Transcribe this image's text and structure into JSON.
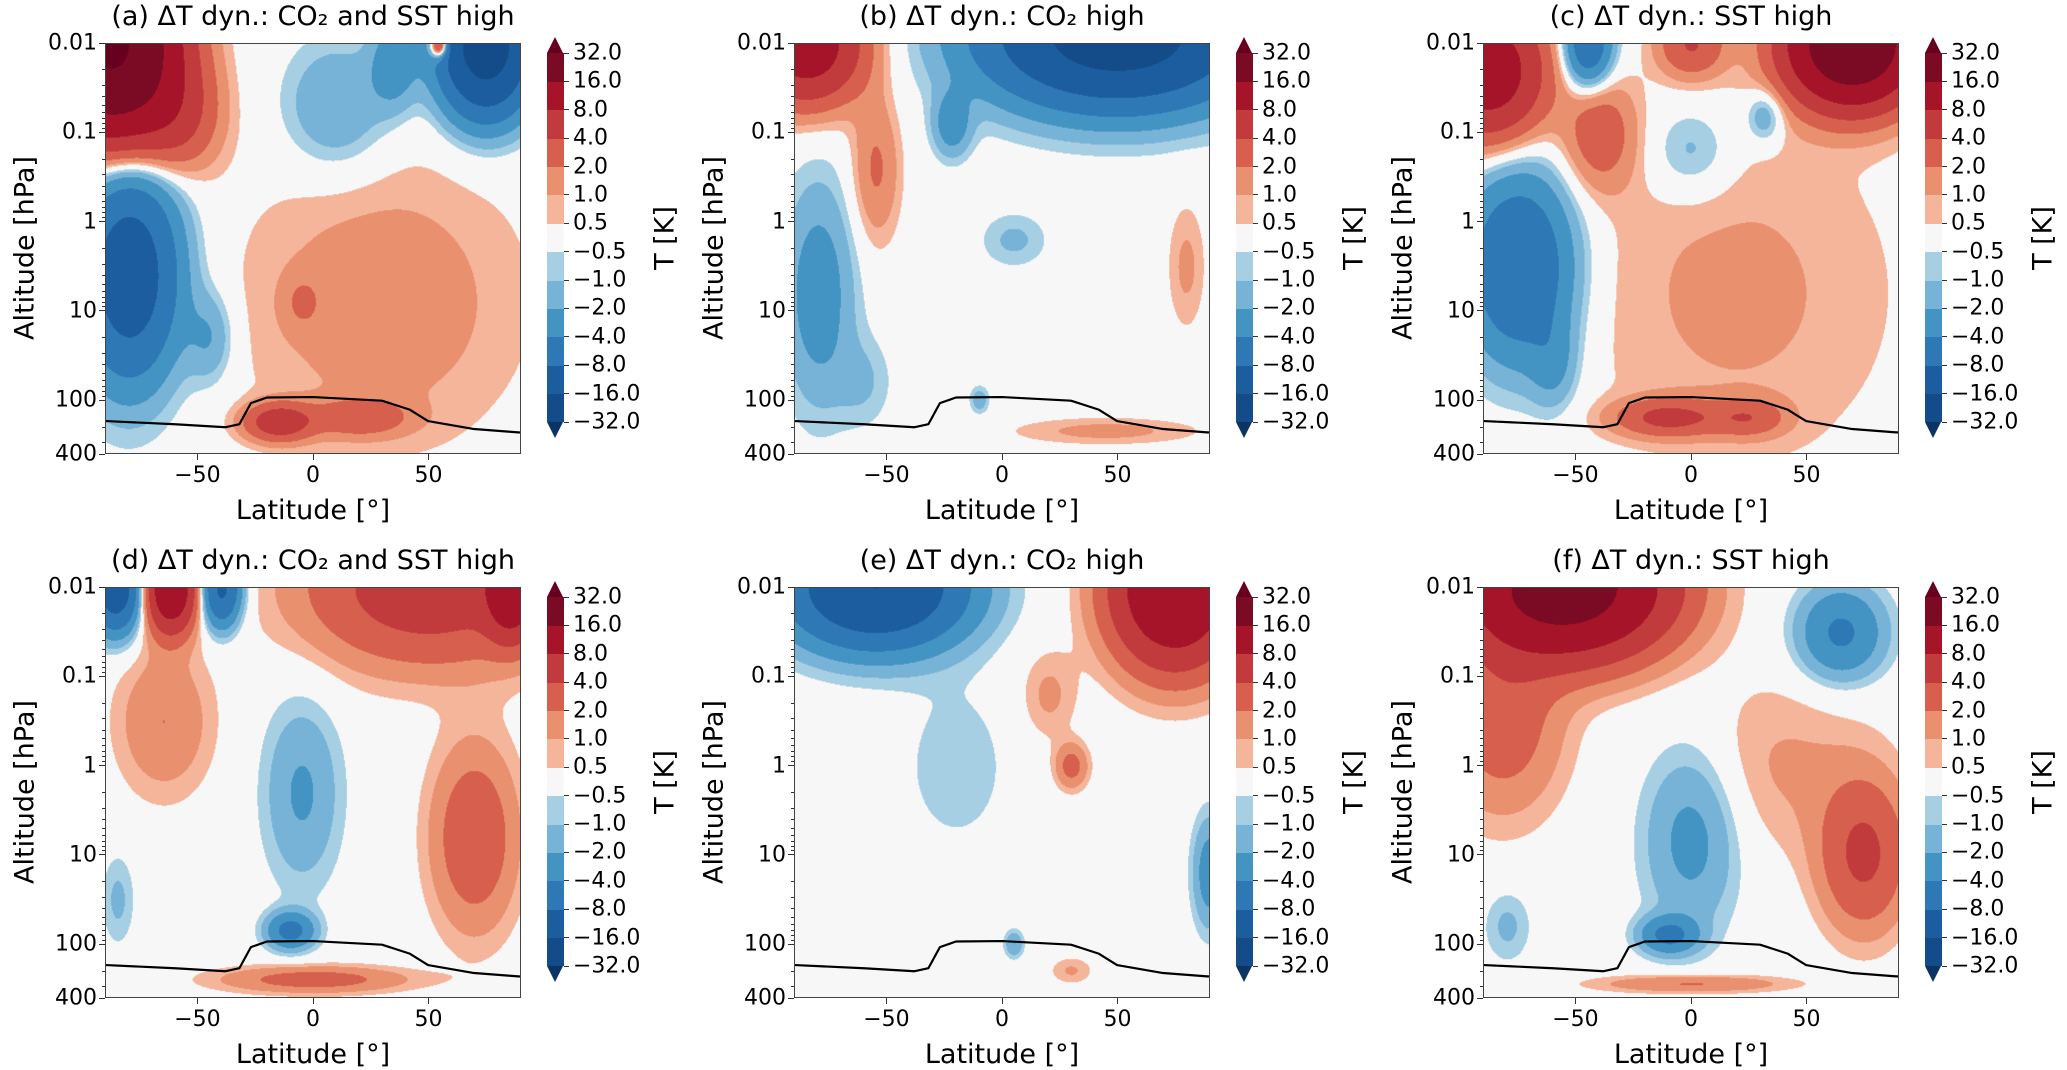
{
  "chart_data": {
    "type": "heatmap",
    "subtype": "filled-contour",
    "xlabel": "Latitude [°]",
    "ylabel": "Altitude [hPa]",
    "xlim": [
      -90,
      90
    ],
    "ylim_hPa": [
      400,
      0.01
    ],
    "yscale": "log",
    "xticks": [
      {
        "value": -50,
        "label": "−50"
      },
      {
        "value": 0,
        "label": "0"
      },
      {
        "value": 50,
        "label": "50"
      }
    ],
    "yticks": [
      {
        "value": 0.01,
        "label": "0.01"
      },
      {
        "value": 0.1,
        "label": "0.1"
      },
      {
        "value": 1,
        "label": "1"
      },
      {
        "value": 10,
        "label": "10"
      },
      {
        "value": 100,
        "label": "100"
      },
      {
        "value": 400,
        "label": "400"
      }
    ],
    "colorbar": {
      "label": "T [K]",
      "levels": [
        -32,
        -16,
        -8,
        -4,
        -2,
        -1,
        -0.5,
        0.5,
        1,
        2,
        4,
        8,
        16,
        32
      ],
      "tick_labels": [
        "32.0",
        "16.0",
        "8.0",
        "4.0",
        "2.0",
        "1.0",
        "0.5",
        "−0.5",
        "−1.0",
        "−2.0",
        "−4.0",
        "−8.0",
        "−16.0",
        "−32.0"
      ],
      "colors": [
        "#134c88",
        "#1c5d9f",
        "#2e78b6",
        "#4393c3",
        "#77b3d7",
        "#a6cfe4",
        "#f7f7f7",
        "#f5b59a",
        "#e9906f",
        "#d6604d",
        "#c13b3c",
        "#a51429",
        "#7b0a24"
      ],
      "under_color": "#0a3466",
      "over_color": "#67001f",
      "extend": "both"
    },
    "tropopause_hPa": [
      [
        -90,
        175
      ],
      [
        -60,
        190
      ],
      [
        -38,
        205
      ],
      [
        -32,
        190
      ],
      [
        -27,
        110
      ],
      [
        -20,
        95
      ],
      [
        0,
        94
      ],
      [
        30,
        103
      ],
      [
        42,
        130
      ],
      [
        50,
        175
      ],
      [
        70,
        215
      ],
      [
        90,
        235
      ]
    ],
    "panels": [
      {
        "id": "a",
        "title": "(a) ΔT dyn.: CO₂ and SST high",
        "field_blobs_lat_log10p_amp_wlat_wlog": [
          [
            -88,
            -2,
            35,
            25,
            0.9
          ],
          [
            -60,
            -1.2,
            4,
            18,
            0.6
          ],
          [
            -80,
            0.6,
            -12,
            20,
            1.1
          ],
          [
            -45,
            1.3,
            -2,
            10,
            0.5
          ],
          [
            10,
            -1.3,
            -2.2,
            22,
            0.7
          ],
          [
            75,
            -2,
            -22,
            18,
            0.7
          ],
          [
            35,
            -1.8,
            -3,
            10,
            0.5
          ],
          [
            55,
            -2,
            10,
            4,
            0.15
          ],
          [
            30,
            0.9,
            1.6,
            60,
            1.6
          ],
          [
            -15,
            2.25,
            6,
            14,
            0.2
          ],
          [
            20,
            2.2,
            3,
            20,
            0.2
          ],
          [
            -5,
            0.9,
            1.3,
            8,
            0.3
          ]
        ]
      },
      {
        "id": "b",
        "title": "(b) ΔT dyn.: CO₂ high",
        "field_blobs_lat_log10p_amp_wlat_wlog": [
          [
            -85,
            -2,
            12,
            22,
            0.6
          ],
          [
            -55,
            -0.6,
            2.2,
            10,
            0.8
          ],
          [
            50,
            -2.1,
            -22,
            50,
            0.7
          ],
          [
            -22,
            -1.1,
            -3,
            8,
            0.35
          ],
          [
            -80,
            0.8,
            -3,
            15,
            1.2
          ],
          [
            5,
            0.2,
            -1.2,
            14,
            0.3
          ],
          [
            80,
            0.5,
            1.2,
            8,
            0.7
          ],
          [
            45,
            2.35,
            1.3,
            40,
            0.15
          ],
          [
            -10,
            2,
            -1.6,
            4,
            0.15
          ],
          [
            -60,
            1.8,
            -1,
            12,
            0.5
          ]
        ]
      },
      {
        "id": "c",
        "title": "(c) ΔT dyn.: SST high",
        "field_blobs_lat_log10p_amp_wlat_wlog": [
          [
            -88,
            -1.7,
            12,
            22,
            0.7
          ],
          [
            70,
            -2,
            28,
            25,
            0.6
          ],
          [
            0,
            -2,
            4,
            14,
            0.35
          ],
          [
            -45,
            -2,
            -7,
            10,
            0.45
          ],
          [
            0,
            -0.8,
            -1.6,
            18,
            0.5
          ],
          [
            32,
            -1.2,
            -2.2,
            8,
            0.3
          ],
          [
            -75,
            0.5,
            -8,
            22,
            1
          ],
          [
            -60,
            1.6,
            -2,
            10,
            0.5
          ],
          [
            20,
            0.8,
            1.2,
            70,
            2
          ],
          [
            -40,
            -1,
            3,
            15,
            0.6
          ],
          [
            -10,
            2.2,
            4.5,
            22,
            0.2
          ],
          [
            25,
            2.2,
            3,
            15,
            0.2
          ]
        ]
      },
      {
        "id": "d",
        "title": "(d) ΔT dyn.: CO₂ and SST high",
        "field_blobs_lat_log10p_amp_wlat_wlog": [
          [
            -86,
            -2,
            -12,
            10,
            0.45
          ],
          [
            -62,
            -2,
            14,
            10,
            0.45
          ],
          [
            -40,
            -2,
            -9,
            8,
            0.4
          ],
          [
            50,
            -2,
            6,
            50,
            0.8
          ],
          [
            86,
            -2,
            12,
            10,
            0.5
          ],
          [
            -5,
            0.3,
            -2.2,
            16,
            1
          ],
          [
            -10,
            1.85,
            -5,
            10,
            0.2
          ],
          [
            70,
            0.8,
            3.5,
            18,
            1
          ],
          [
            -65,
            -0.5,
            2,
            20,
            0.8
          ],
          [
            -85,
            1.5,
            -1.2,
            7,
            0.5
          ],
          [
            0,
            2.4,
            2.8,
            40,
            0.15
          ]
        ]
      },
      {
        "id": "e",
        "title": "(e) ΔT dyn.: CO₂ high",
        "field_blobs_lat_log10p_amp_wlat_wlog": [
          [
            -55,
            -2,
            -16,
            35,
            0.6
          ],
          [
            75,
            -2,
            16,
            25,
            0.8
          ],
          [
            -20,
            0,
            -0.8,
            25,
            1
          ],
          [
            30,
            0,
            2.6,
            7,
            0.25
          ],
          [
            90,
            1.2,
            -3,
            7,
            0.6
          ],
          [
            5,
            2,
            -2,
            4,
            0.15
          ],
          [
            30,
            2.3,
            1.1,
            9,
            0.15
          ],
          [
            20,
            -0.8,
            1.2,
            12,
            0.5
          ]
        ]
      },
      {
        "id": "f",
        "title": "(f) ΔT dyn.: SST high",
        "field_blobs_lat_log10p_amp_wlat_wlog": [
          [
            -55,
            -2,
            22,
            40,
            0.7
          ],
          [
            -82,
            -0.5,
            3,
            25,
            1
          ],
          [
            65,
            -1.5,
            -4.5,
            18,
            0.5
          ],
          [
            0,
            0.8,
            -2.6,
            20,
            1
          ],
          [
            -10,
            1.9,
            -4.5,
            12,
            0.2
          ],
          [
            75,
            1,
            4.5,
            18,
            0.8
          ],
          [
            -80,
            1.8,
            -1.2,
            10,
            0.4
          ],
          [
            0,
            2.45,
            2.2,
            40,
            0.1
          ],
          [
            40,
            0,
            1.1,
            40,
            1
          ]
        ]
      }
    ]
  }
}
